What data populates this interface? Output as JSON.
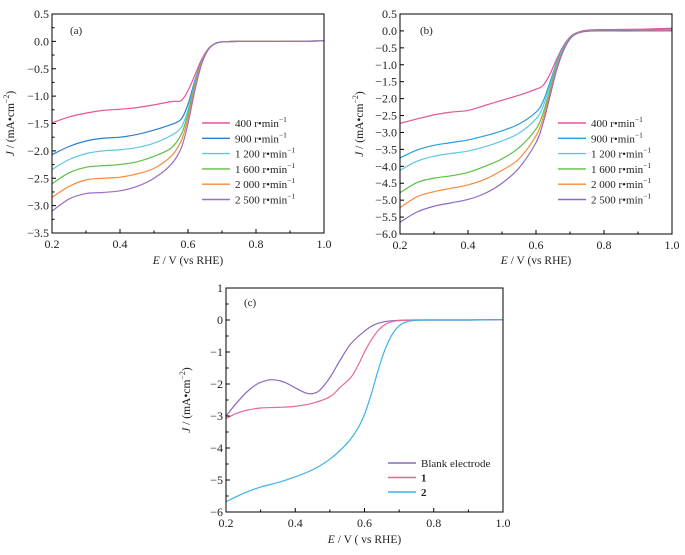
{
  "chart_data": [
    {
      "id": "a",
      "type": "line",
      "panel_label": "(a)",
      "xlabel_italic": "E",
      "xlabel_rest": " / V (vs RHE)",
      "ylabel_italic": "J",
      "ylabel_rest": " / (mA•cm",
      "ylabel_sup": "−2",
      "ylabel_close": ")",
      "xlim": [
        0.2,
        1.0
      ],
      "ylim": [
        -3.5,
        0.5
      ],
      "xticks": [
        0.2,
        0.4,
        0.6,
        0.8,
        1.0
      ],
      "xtick_labels": [
        "0.2",
        "0.4",
        "0.6",
        "0.8",
        "1.0"
      ],
      "yticks": [
        0.5,
        0.0,
        -0.5,
        -1.0,
        -1.5,
        -2.0,
        -2.5,
        -3.0,
        -3.5
      ],
      "ytick_labels": [
        "0.5",
        "0.0",
        "−0.5",
        "−1.0",
        "−1.5",
        "−2.0",
        "−2.5",
        "−3.0",
        "−3.5"
      ],
      "legend_position": "center-right",
      "grid": false,
      "series": [
        {
          "name": "400 r•min",
          "sup": "−1",
          "color": "#e8559a",
          "x": [
            0.2,
            0.25,
            0.3,
            0.35,
            0.4,
            0.45,
            0.5,
            0.55,
            0.58,
            0.6,
            0.62,
            0.64,
            0.66,
            0.68,
            0.7,
            0.75,
            0.8,
            0.9,
            1.0
          ],
          "y": [
            -1.49,
            -1.38,
            -1.31,
            -1.26,
            -1.24,
            -1.21,
            -1.16,
            -1.1,
            -1.08,
            -0.9,
            -0.62,
            -0.33,
            -0.13,
            -0.04,
            -0.01,
            0.0,
            0.0,
            0.0,
            0.01
          ]
        },
        {
          "name": "900 r•min",
          "sup": "−1",
          "color": "#2a7fce",
          "x": [
            0.2,
            0.25,
            0.3,
            0.35,
            0.4,
            0.45,
            0.5,
            0.55,
            0.58,
            0.6,
            0.62,
            0.64,
            0.66,
            0.68,
            0.7,
            0.75,
            0.8,
            0.9,
            1.0
          ],
          "y": [
            -2.07,
            -1.92,
            -1.82,
            -1.77,
            -1.75,
            -1.7,
            -1.62,
            -1.52,
            -1.42,
            -1.15,
            -0.72,
            -0.36,
            -0.14,
            -0.04,
            -0.01,
            0.0,
            0.0,
            0.0,
            0.01
          ]
        },
        {
          "name": "1 200 r•min",
          "sup": "−1",
          "color": "#5ec8e0",
          "x": [
            0.2,
            0.25,
            0.3,
            0.35,
            0.4,
            0.45,
            0.5,
            0.55,
            0.58,
            0.6,
            0.62,
            0.64,
            0.66,
            0.68,
            0.7,
            0.75,
            0.8,
            0.9,
            1.0
          ],
          "y": [
            -2.34,
            -2.16,
            -2.05,
            -2.0,
            -1.98,
            -1.94,
            -1.86,
            -1.72,
            -1.57,
            -1.25,
            -0.76,
            -0.37,
            -0.14,
            -0.04,
            -0.01,
            0.0,
            0.0,
            0.0,
            0.01
          ]
        },
        {
          "name": "1 600 r•min",
          "sup": "−1",
          "color": "#5cc043",
          "x": [
            0.2,
            0.25,
            0.3,
            0.35,
            0.4,
            0.45,
            0.5,
            0.55,
            0.58,
            0.6,
            0.62,
            0.64,
            0.66,
            0.68,
            0.7,
            0.75,
            0.8,
            0.9,
            1.0
          ],
          "y": [
            -2.6,
            -2.4,
            -2.3,
            -2.27,
            -2.25,
            -2.2,
            -2.1,
            -1.95,
            -1.7,
            -1.32,
            -0.8,
            -0.38,
            -0.14,
            -0.04,
            -0.01,
            0.0,
            0.0,
            0.0,
            0.01
          ]
        },
        {
          "name": "2 000 r•min",
          "sup": "−1",
          "color": "#f78a3f",
          "x": [
            0.2,
            0.25,
            0.3,
            0.35,
            0.4,
            0.45,
            0.5,
            0.55,
            0.58,
            0.6,
            0.62,
            0.64,
            0.66,
            0.68,
            0.7,
            0.75,
            0.8,
            0.9,
            1.0
          ],
          "y": [
            -2.85,
            -2.65,
            -2.53,
            -2.5,
            -2.48,
            -2.42,
            -2.32,
            -2.1,
            -1.82,
            -1.4,
            -0.84,
            -0.39,
            -0.14,
            -0.04,
            -0.01,
            0.0,
            0.0,
            0.0,
            0.01
          ]
        },
        {
          "name": "2 500 r•min",
          "sup": "−1",
          "color": "#9b6fc4",
          "x": [
            0.2,
            0.25,
            0.3,
            0.35,
            0.4,
            0.45,
            0.5,
            0.55,
            0.58,
            0.6,
            0.62,
            0.64,
            0.66,
            0.68,
            0.7,
            0.75,
            0.8,
            0.9,
            1.0
          ],
          "y": [
            -3.1,
            -2.88,
            -2.78,
            -2.76,
            -2.73,
            -2.65,
            -2.5,
            -2.25,
            -1.95,
            -1.5,
            -0.9,
            -0.42,
            -0.15,
            -0.04,
            -0.01,
            0.0,
            0.0,
            0.0,
            0.01
          ]
        }
      ]
    },
    {
      "id": "b",
      "type": "line",
      "panel_label": "(b)",
      "xlabel_italic": "E",
      "xlabel_rest": " / V (vs RHE)",
      "ylabel_italic": "J",
      "ylabel_rest": " / (mA•cm",
      "ylabel_sup": "−2",
      "ylabel_close": ")",
      "xlim": [
        0.2,
        1.0
      ],
      "ylim": [
        -6.0,
        0.5
      ],
      "xticks": [
        0.2,
        0.4,
        0.6,
        0.8,
        1.0
      ],
      "xtick_labels": [
        "0.2",
        "0.4",
        "0.6",
        "0.8",
        "1.0"
      ],
      "yticks": [
        0.5,
        0.0,
        -0.5,
        -1.0,
        -1.5,
        -2.0,
        -2.5,
        -3.0,
        -3.5,
        -4.0,
        -4.5,
        -5.0,
        -5.5,
        -6.0
      ],
      "ytick_labels": [
        "0.5",
        "0.0",
        "−0.5",
        "−1.0",
        "−1.5",
        "−2.0",
        "−2.5",
        "−3.0",
        "−3.5",
        "−4.0",
        "−4.5",
        "−5.0",
        "−5.5",
        "−6.0"
      ],
      "legend_position": "center-right",
      "grid": false,
      "series": [
        {
          "name": "400 r•min",
          "sup": "−1",
          "color": "#e8559a",
          "x": [
            0.2,
            0.25,
            0.3,
            0.35,
            0.4,
            0.45,
            0.5,
            0.55,
            0.6,
            0.62,
            0.64,
            0.66,
            0.68,
            0.7,
            0.72,
            0.75,
            0.8,
            0.9,
            1.0
          ],
          "y": [
            -2.73,
            -2.6,
            -2.48,
            -2.4,
            -2.35,
            -2.2,
            -2.05,
            -1.9,
            -1.72,
            -1.62,
            -1.3,
            -0.85,
            -0.45,
            -0.18,
            -0.05,
            0.02,
            0.04,
            0.05,
            0.08
          ]
        },
        {
          "name": "900 r•min",
          "sup": "−1",
          "color": "#2a9ee0",
          "x": [
            0.2,
            0.25,
            0.3,
            0.35,
            0.4,
            0.45,
            0.5,
            0.55,
            0.6,
            0.62,
            0.64,
            0.66,
            0.68,
            0.7,
            0.72,
            0.75,
            0.8,
            0.9,
            1.0
          ],
          "y": [
            -3.75,
            -3.52,
            -3.38,
            -3.3,
            -3.22,
            -3.1,
            -2.95,
            -2.75,
            -2.4,
            -2.1,
            -1.55,
            -0.95,
            -0.5,
            -0.2,
            -0.06,
            0.0,
            0.02,
            0.03,
            0.05
          ]
        },
        {
          "name": "1 200 r•min",
          "sup": "−1",
          "color": "#5ec8e0",
          "x": [
            0.2,
            0.25,
            0.3,
            0.35,
            0.4,
            0.45,
            0.5,
            0.55,
            0.6,
            0.62,
            0.64,
            0.66,
            0.68,
            0.7,
            0.72,
            0.75,
            0.8,
            0.9,
            1.0
          ],
          "y": [
            -4.12,
            -3.85,
            -3.7,
            -3.62,
            -3.55,
            -3.42,
            -3.25,
            -3.02,
            -2.6,
            -2.25,
            -1.65,
            -1.0,
            -0.52,
            -0.21,
            -0.06,
            0.0,
            0.01,
            0.02,
            0.03
          ]
        },
        {
          "name": "1 600 r•min",
          "sup": "−1",
          "color": "#5cc043",
          "x": [
            0.2,
            0.25,
            0.3,
            0.35,
            0.4,
            0.45,
            0.5,
            0.55,
            0.6,
            0.62,
            0.64,
            0.66,
            0.68,
            0.7,
            0.72,
            0.75,
            0.8,
            0.9,
            1.0
          ],
          "y": [
            -4.78,
            -4.48,
            -4.35,
            -4.28,
            -4.18,
            -4.0,
            -3.78,
            -3.45,
            -2.9,
            -2.45,
            -1.78,
            -1.06,
            -0.55,
            -0.22,
            -0.06,
            0.0,
            0.01,
            0.02,
            0.03
          ]
        },
        {
          "name": "2 000 r•min",
          "sup": "−1",
          "color": "#f78a3f",
          "x": [
            0.2,
            0.25,
            0.3,
            0.35,
            0.4,
            0.45,
            0.5,
            0.55,
            0.6,
            0.62,
            0.64,
            0.66,
            0.68,
            0.7,
            0.72,
            0.75,
            0.8,
            0.9,
            1.0
          ],
          "y": [
            -5.22,
            -4.9,
            -4.75,
            -4.65,
            -4.55,
            -4.38,
            -4.12,
            -3.78,
            -3.1,
            -2.6,
            -1.88,
            -1.12,
            -0.58,
            -0.23,
            -0.07,
            0.0,
            0.0,
            0.0,
            0.02
          ]
        },
        {
          "name": "2 500 r•min",
          "sup": "−1",
          "color": "#8d6bc4",
          "x": [
            0.2,
            0.25,
            0.3,
            0.35,
            0.4,
            0.45,
            0.5,
            0.55,
            0.6,
            0.62,
            0.64,
            0.66,
            0.68,
            0.7,
            0.72,
            0.75,
            0.8,
            0.9,
            1.0
          ],
          "y": [
            -5.65,
            -5.35,
            -5.18,
            -5.08,
            -4.98,
            -4.8,
            -4.5,
            -4.05,
            -3.3,
            -2.75,
            -1.98,
            -1.18,
            -0.6,
            -0.24,
            -0.08,
            -0.01,
            0.0,
            0.0,
            0.0
          ]
        }
      ]
    },
    {
      "id": "c",
      "type": "line",
      "panel_label": "(c)",
      "xlabel_italic": "E",
      "xlabel_rest": " / V ( vs RHE)",
      "ylabel_italic": "J",
      "ylabel_rest": " / (mA•cm",
      "ylabel_sup": "−2",
      "ylabel_close": ")",
      "xlim": [
        0.2,
        1.0
      ],
      "ylim": [
        -6,
        1
      ],
      "xticks": [
        0.2,
        0.4,
        0.6,
        0.8,
        1.0
      ],
      "xtick_labels": [
        "0.2",
        "0.4",
        "0.6",
        "0.8",
        "1.0"
      ],
      "yticks": [
        1,
        0,
        -1,
        -2,
        -3,
        -4,
        -5,
        -6
      ],
      "ytick_labels": [
        "1",
        "0",
        "−1",
        "−2",
        "−3",
        "−4",
        "−5",
        "−6"
      ],
      "legend_position": "bottom-right",
      "grid": false,
      "series": [
        {
          "name": "Blank electrode",
          "bold": false,
          "color": "#8a6bbf",
          "x": [
            0.2,
            0.23,
            0.26,
            0.29,
            0.32,
            0.34,
            0.37,
            0.4,
            0.43,
            0.45,
            0.47,
            0.5,
            0.53,
            0.56,
            0.6,
            0.63,
            0.66,
            0.7,
            0.75,
            0.8,
            0.9,
            1.0
          ],
          "y": [
            -3.0,
            -2.6,
            -2.25,
            -2.0,
            -1.88,
            -1.87,
            -1.95,
            -2.12,
            -2.28,
            -2.3,
            -2.2,
            -1.8,
            -1.25,
            -0.75,
            -0.35,
            -0.14,
            -0.05,
            -0.01,
            0.0,
            0.0,
            0.0,
            0.01
          ]
        },
        {
          "name": "1",
          "bold": true,
          "color": "#e8679a",
          "x": [
            0.2,
            0.23,
            0.26,
            0.3,
            0.35,
            0.4,
            0.45,
            0.5,
            0.53,
            0.56,
            0.58,
            0.6,
            0.62,
            0.64,
            0.66,
            0.68,
            0.7,
            0.75,
            0.8,
            0.9,
            1.0
          ],
          "y": [
            -3.08,
            -2.92,
            -2.82,
            -2.75,
            -2.73,
            -2.7,
            -2.6,
            -2.4,
            -2.1,
            -1.8,
            -1.45,
            -1.0,
            -0.62,
            -0.32,
            -0.14,
            -0.05,
            -0.02,
            0.0,
            0.0,
            0.0,
            0.01
          ]
        },
        {
          "name": "2",
          "bold": true,
          "color": "#3fb0e6",
          "x": [
            0.2,
            0.25,
            0.3,
            0.35,
            0.4,
            0.45,
            0.5,
            0.55,
            0.58,
            0.6,
            0.62,
            0.64,
            0.66,
            0.68,
            0.7,
            0.72,
            0.75,
            0.8,
            0.9,
            1.0
          ],
          "y": [
            -5.68,
            -5.42,
            -5.22,
            -5.08,
            -4.9,
            -4.68,
            -4.35,
            -3.85,
            -3.4,
            -2.95,
            -2.3,
            -1.55,
            -0.9,
            -0.45,
            -0.18,
            -0.06,
            -0.01,
            0.0,
            0.0,
            0.01
          ]
        }
      ]
    }
  ]
}
